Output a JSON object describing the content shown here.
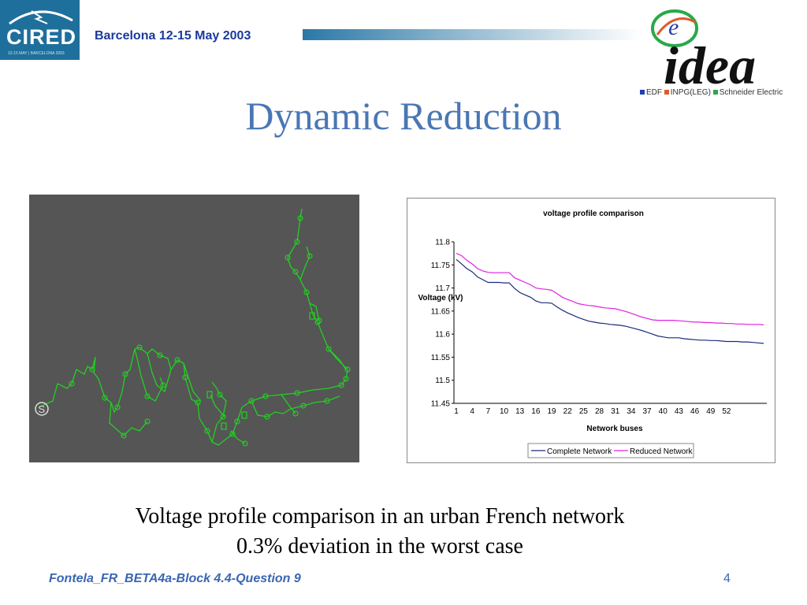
{
  "header": {
    "logo_text": "CIRED",
    "logo_subtext": "12-15 MAY | BARCELONA 2003",
    "event": "Barcelona  12-15 May 2003"
  },
  "slide": {
    "title": "Dynamic Reduction",
    "caption_line1": "Voltage profile comparison in an urban French network",
    "caption_line2": "0.3% deviation in the worst case"
  },
  "idea_logo": {
    "text": "idea",
    "letter": "e",
    "legend": [
      {
        "label": "EDF",
        "color": "#1f3fb0"
      },
      {
        "label": "INPG(LEG)",
        "color": "#e05a2a"
      },
      {
        "label": "Schneider Electric",
        "color": "#2aa84a"
      }
    ]
  },
  "network_diagram": {
    "source_label": "S",
    "line_color": "#22d022"
  },
  "chart_data": {
    "type": "line",
    "title": "voltage profile comparison",
    "xlabel": "Network buses",
    "ylabel": "Voltage (kV)",
    "ylim": [
      11.45,
      11.8
    ],
    "yticks": [
      "11.8",
      "11.75",
      "11.7",
      "11.65",
      "11.6",
      "11.55",
      "11.5",
      "11.45"
    ],
    "xticks": [
      "1",
      "4",
      "7",
      "10",
      "13",
      "16",
      "19",
      "22",
      "25",
      "28",
      "31",
      "34",
      "37",
      "40",
      "43",
      "46",
      "49",
      "52"
    ],
    "legend_position": "bottom",
    "series": [
      {
        "name": "Complete Network",
        "color": "#1c2a7a",
        "values": [
          11.762,
          11.752,
          11.742,
          11.735,
          11.724,
          11.718,
          11.712,
          11.712,
          11.712,
          11.711,
          11.711,
          11.699,
          11.69,
          11.685,
          11.68,
          11.672,
          11.668,
          11.668,
          11.667,
          11.659,
          11.652,
          11.646,
          11.641,
          11.636,
          11.632,
          11.628,
          11.626,
          11.624,
          11.623,
          11.621,
          11.62,
          11.619,
          11.617,
          11.614,
          11.611,
          11.608,
          11.604,
          11.6,
          11.596,
          11.594,
          11.592,
          11.592,
          11.592,
          11.59,
          11.589,
          11.588,
          11.587,
          11.587,
          11.586,
          11.586,
          11.585,
          11.584,
          11.584,
          11.584,
          11.583,
          11.583,
          11.582,
          11.581,
          11.58
        ]
      },
      {
        "name": "Reduced Network",
        "color": "#e020e0",
        "values": [
          11.775,
          11.77,
          11.76,
          11.752,
          11.742,
          11.737,
          11.734,
          11.733,
          11.733,
          11.733,
          11.733,
          11.722,
          11.717,
          11.712,
          11.707,
          11.7,
          11.698,
          11.697,
          11.695,
          11.688,
          11.68,
          11.675,
          11.671,
          11.666,
          11.664,
          11.662,
          11.661,
          11.659,
          11.657,
          11.656,
          11.655,
          11.652,
          11.649,
          11.645,
          11.641,
          11.637,
          11.634,
          11.631,
          11.63,
          11.63,
          11.63,
          11.63,
          11.629,
          11.628,
          11.627,
          11.626,
          11.626,
          11.625,
          11.625,
          11.624,
          11.624,
          11.623,
          11.623,
          11.622,
          11.622,
          11.621,
          11.621,
          11.621,
          11.62
        ]
      }
    ]
  },
  "footer": {
    "left": "Fontela_FR_BETA4a-Block 4.4-Question 9",
    "page": "4"
  }
}
